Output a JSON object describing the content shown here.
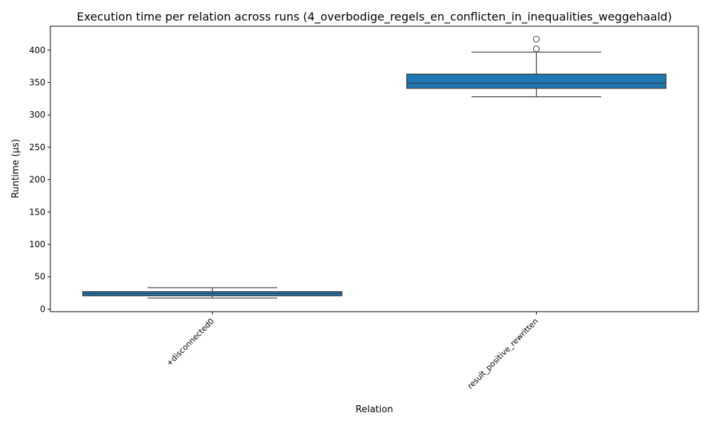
{
  "chart_data": {
    "type": "box",
    "title": "Execution time per relation across runs (4_overbodige_regels_en_conflicten_in_inequalities_weggehaald)",
    "xlabel": "Relation",
    "ylabel": "Runtime (µs)",
    "ylim": [
      -4,
      437
    ],
    "yticks": [
      0,
      50,
      100,
      150,
      200,
      250,
      300,
      350,
      400
    ],
    "grid": false,
    "box_color": "#1f77b4",
    "edge_color": "#3a3a3a",
    "categories": [
      "+disconnected0",
      "result_positive_rewritten"
    ],
    "boxes": [
      {
        "category": "+disconnected0",
        "whisker_low": 17,
        "q1": 20.5,
        "median": 24,
        "q3": 27,
        "whisker_high": 33,
        "outliers": []
      },
      {
        "category": "result_positive_rewritten",
        "whisker_low": 328,
        "q1": 341,
        "median": 349,
        "q3": 363,
        "whisker_high": 397,
        "outliers": [
          402,
          417
        ]
      }
    ]
  }
}
